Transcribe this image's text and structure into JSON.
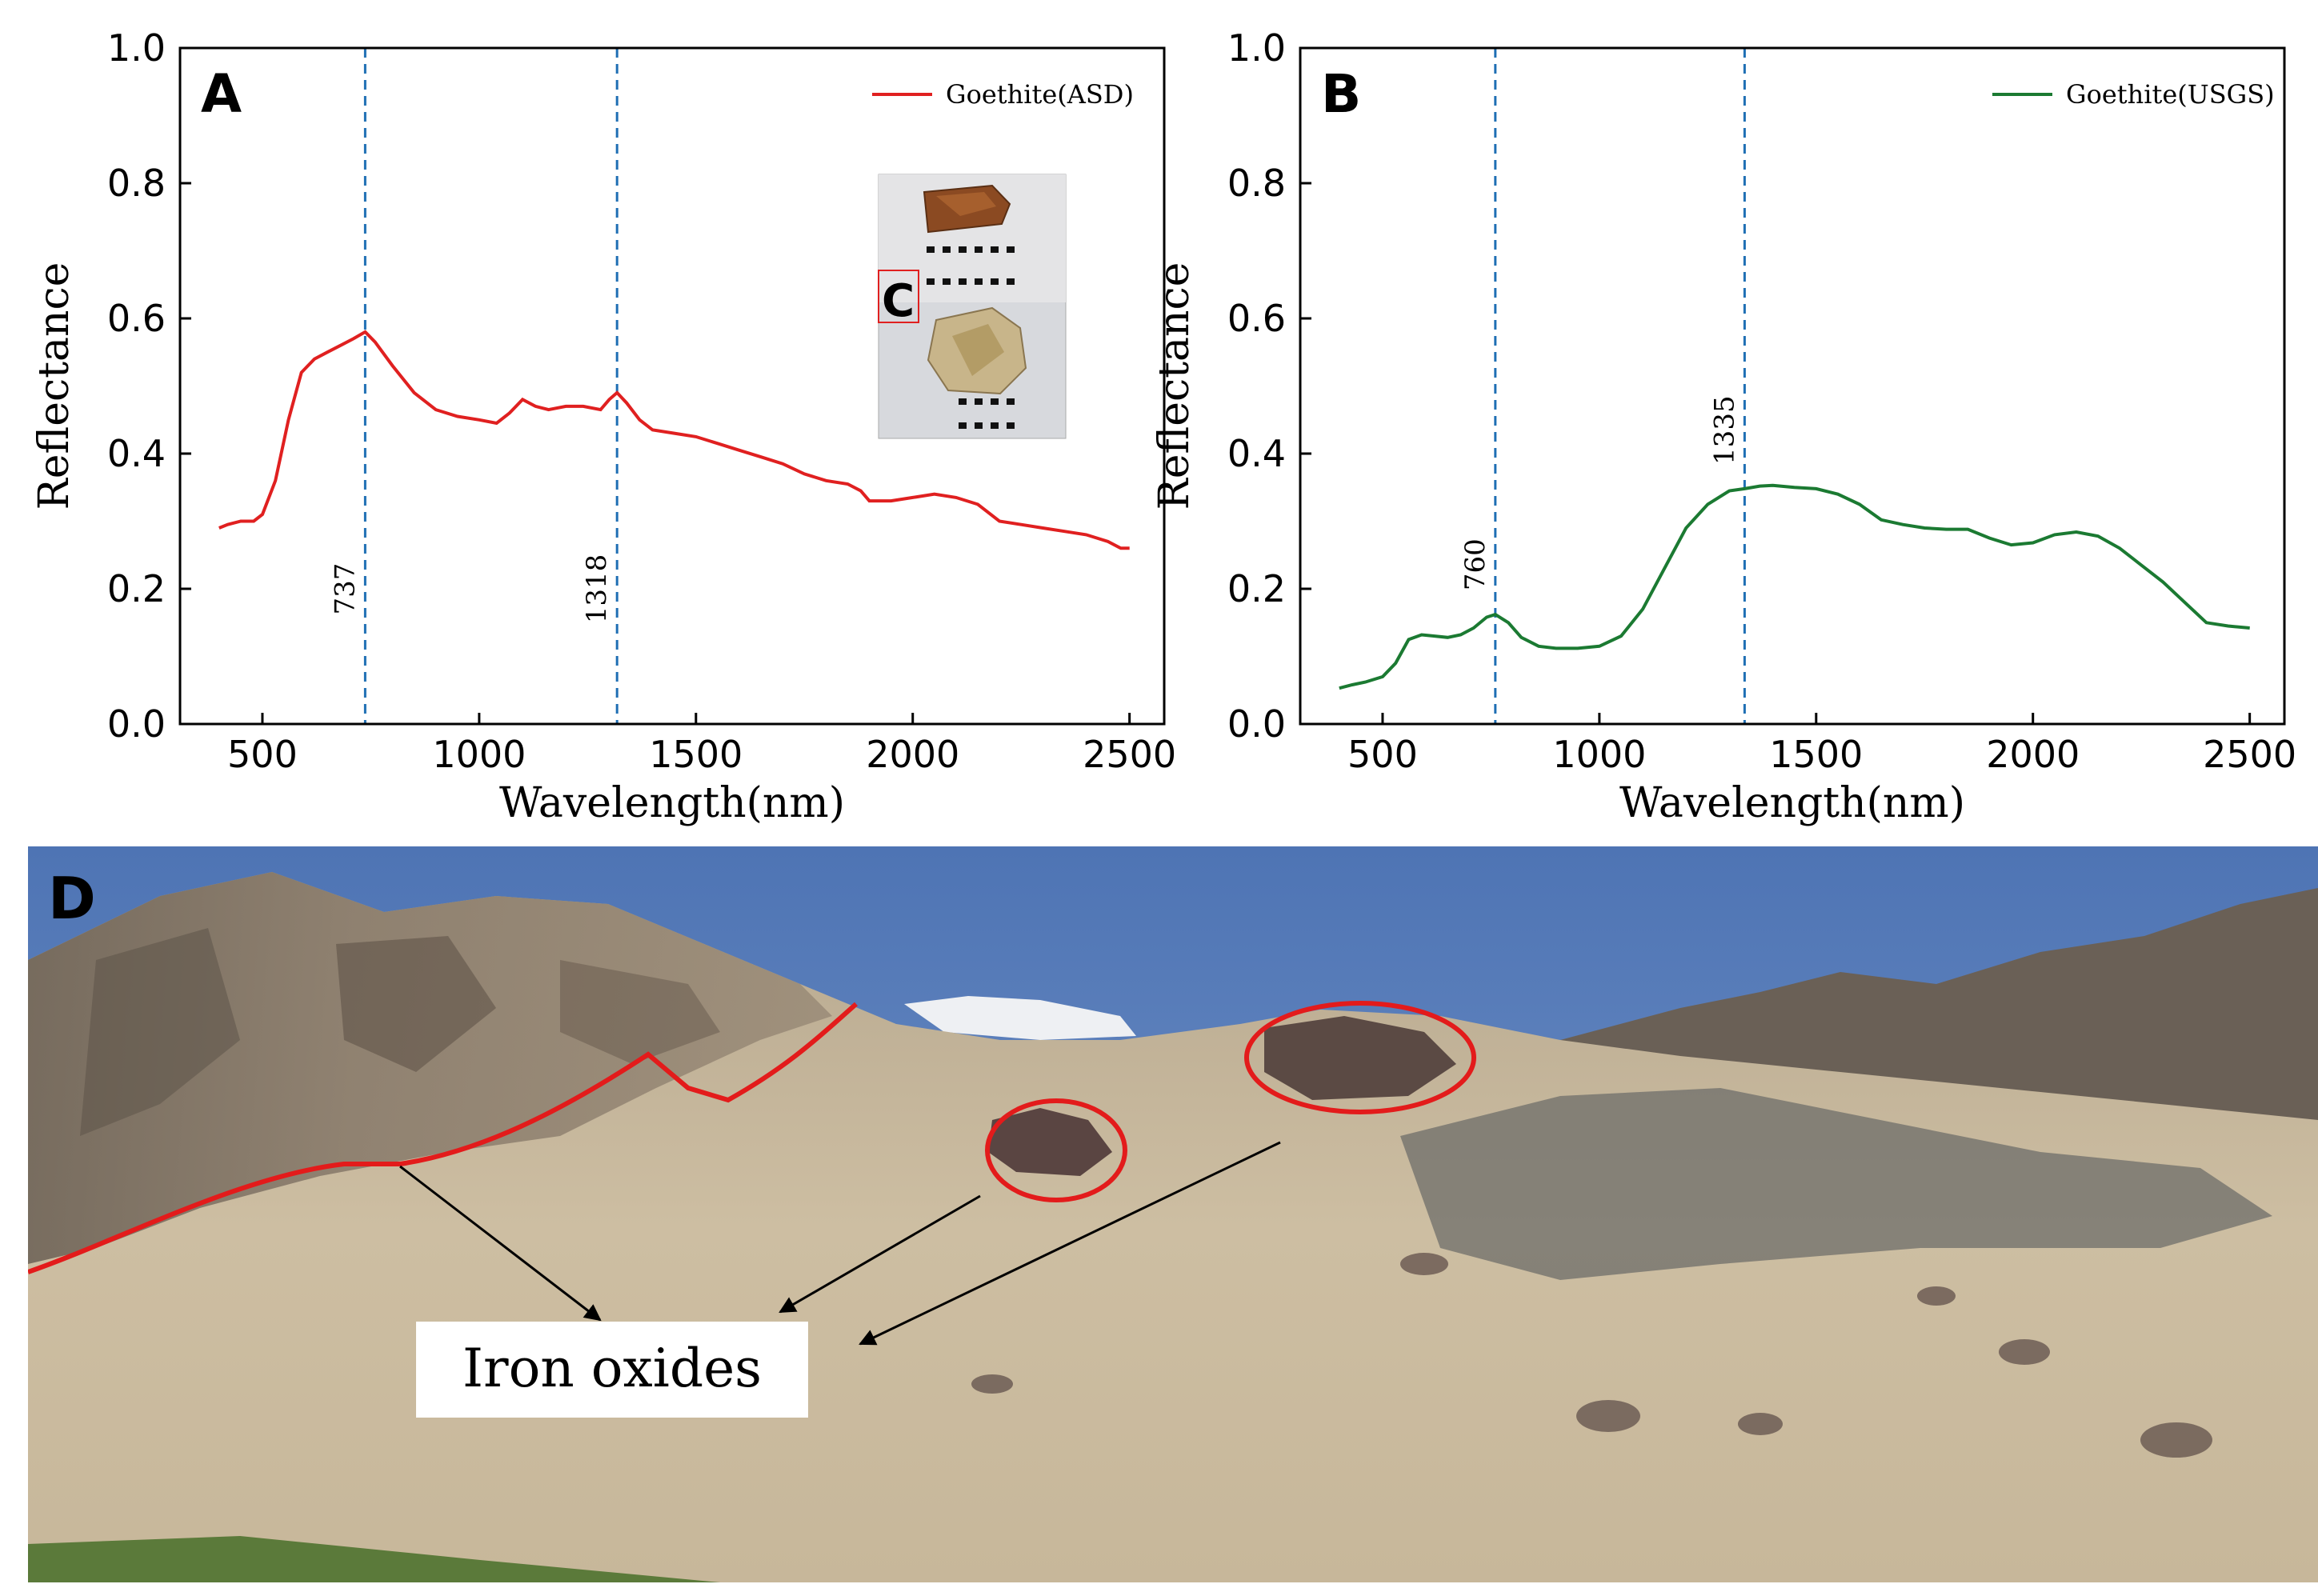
{
  "chart_data": [
    {
      "type": "line",
      "panel_label": "A",
      "xlabel": "Wavelength(nm)",
      "ylabel": "Reflectance",
      "xlim": [
        310,
        2580
      ],
      "ylim": [
        0,
        1.0
      ],
      "xticks": [
        500,
        1000,
        1500,
        2000,
        2500
      ],
      "xtick_labels": [
        "500",
        "1000",
        "1500",
        "2000",
        "2500"
      ],
      "yticks": [
        0,
        0.2,
        0.4,
        0.6,
        0.8,
        1.0
      ],
      "ytick_labels": [
        "0.0",
        "0.2",
        "0.4",
        "0.6",
        "0.8",
        "1.0"
      ],
      "legend": "top-right",
      "grid": false,
      "color": "#e02020",
      "series": [
        {
          "name": "Goethite(ASD)",
          "x": [
            400,
            420,
            450,
            480,
            500,
            530,
            560,
            590,
            620,
            650,
            680,
            710,
            737,
            760,
            800,
            850,
            900,
            950,
            1000,
            1040,
            1070,
            1100,
            1130,
            1160,
            1200,
            1240,
            1280,
            1300,
            1318,
            1340,
            1370,
            1400,
            1450,
            1500,
            1550,
            1600,
            1650,
            1700,
            1750,
            1800,
            1850,
            1880,
            1900,
            1950,
            2000,
            2050,
            2100,
            2150,
            2200,
            2250,
            2300,
            2350,
            2400,
            2450,
            2480,
            2500
          ],
          "y": [
            0.29,
            0.295,
            0.3,
            0.3,
            0.31,
            0.36,
            0.45,
            0.52,
            0.54,
            0.55,
            0.56,
            0.57,
            0.58,
            0.565,
            0.53,
            0.49,
            0.465,
            0.455,
            0.45,
            0.445,
            0.46,
            0.48,
            0.47,
            0.465,
            0.47,
            0.47,
            0.465,
            0.48,
            0.49,
            0.475,
            0.45,
            0.435,
            0.43,
            0.425,
            0.415,
            0.405,
            0.395,
            0.385,
            0.37,
            0.36,
            0.355,
            0.345,
            0.33,
            0.33,
            0.335,
            0.34,
            0.335,
            0.325,
            0.3,
            0.295,
            0.29,
            0.285,
            0.28,
            0.27,
            0.26,
            0.26
          ]
        }
      ],
      "reference_lines": [
        {
          "x": 737,
          "label": "737"
        },
        {
          "x": 1318,
          "label": "1318"
        }
      ],
      "inset_label": "C"
    },
    {
      "type": "line",
      "panel_label": "B",
      "xlabel": "Wavelength(nm)",
      "ylabel": "Reflectance",
      "xlim": [
        310,
        2580
      ],
      "ylim": [
        0,
        1.0
      ],
      "xticks": [
        500,
        1000,
        1500,
        2000,
        2500
      ],
      "xtick_labels": [
        "500",
        "1000",
        "1500",
        "2000",
        "2500"
      ],
      "yticks": [
        0,
        0.2,
        0.4,
        0.6,
        0.8,
        1.0
      ],
      "ytick_labels": [
        "0.0",
        "0.2",
        "0.4",
        "0.6",
        "0.8",
        "1.0"
      ],
      "legend": "top-right",
      "grid": false,
      "color": "#1b7a32",
      "series": [
        {
          "name": "Goethite(USGS)",
          "x": [
            400,
            430,
            460,
            500,
            530,
            560,
            590,
            620,
            650,
            680,
            710,
            740,
            760,
            790,
            820,
            860,
            900,
            950,
            1000,
            1050,
            1100,
            1150,
            1200,
            1250,
            1300,
            1335,
            1370,
            1400,
            1450,
            1500,
            1550,
            1600,
            1650,
            1700,
            1750,
            1800,
            1850,
            1900,
            1950,
            2000,
            2050,
            2100,
            2150,
            2200,
            2250,
            2300,
            2350,
            2400,
            2450,
            2500
          ],
          "y": [
            0.053,
            0.058,
            0.062,
            0.07,
            0.09,
            0.125,
            0.132,
            0.13,
            0.128,
            0.132,
            0.142,
            0.158,
            0.162,
            0.15,
            0.128,
            0.115,
            0.112,
            0.112,
            0.115,
            0.13,
            0.17,
            0.23,
            0.29,
            0.325,
            0.345,
            0.348,
            0.352,
            0.353,
            0.35,
            0.348,
            0.34,
            0.325,
            0.302,
            0.295,
            0.29,
            0.288,
            0.288,
            0.275,
            0.265,
            0.268,
            0.28,
            0.284,
            0.278,
            0.26,
            0.235,
            0.21,
            0.18,
            0.15,
            0.145,
            0.142
          ]
        }
      ],
      "reference_lines": [
        {
          "x": 760,
          "label": "760"
        },
        {
          "x": 1335,
          "label": "1335"
        }
      ]
    }
  ],
  "photo": {
    "panel_label": "D",
    "annotation": "Iron oxides"
  }
}
